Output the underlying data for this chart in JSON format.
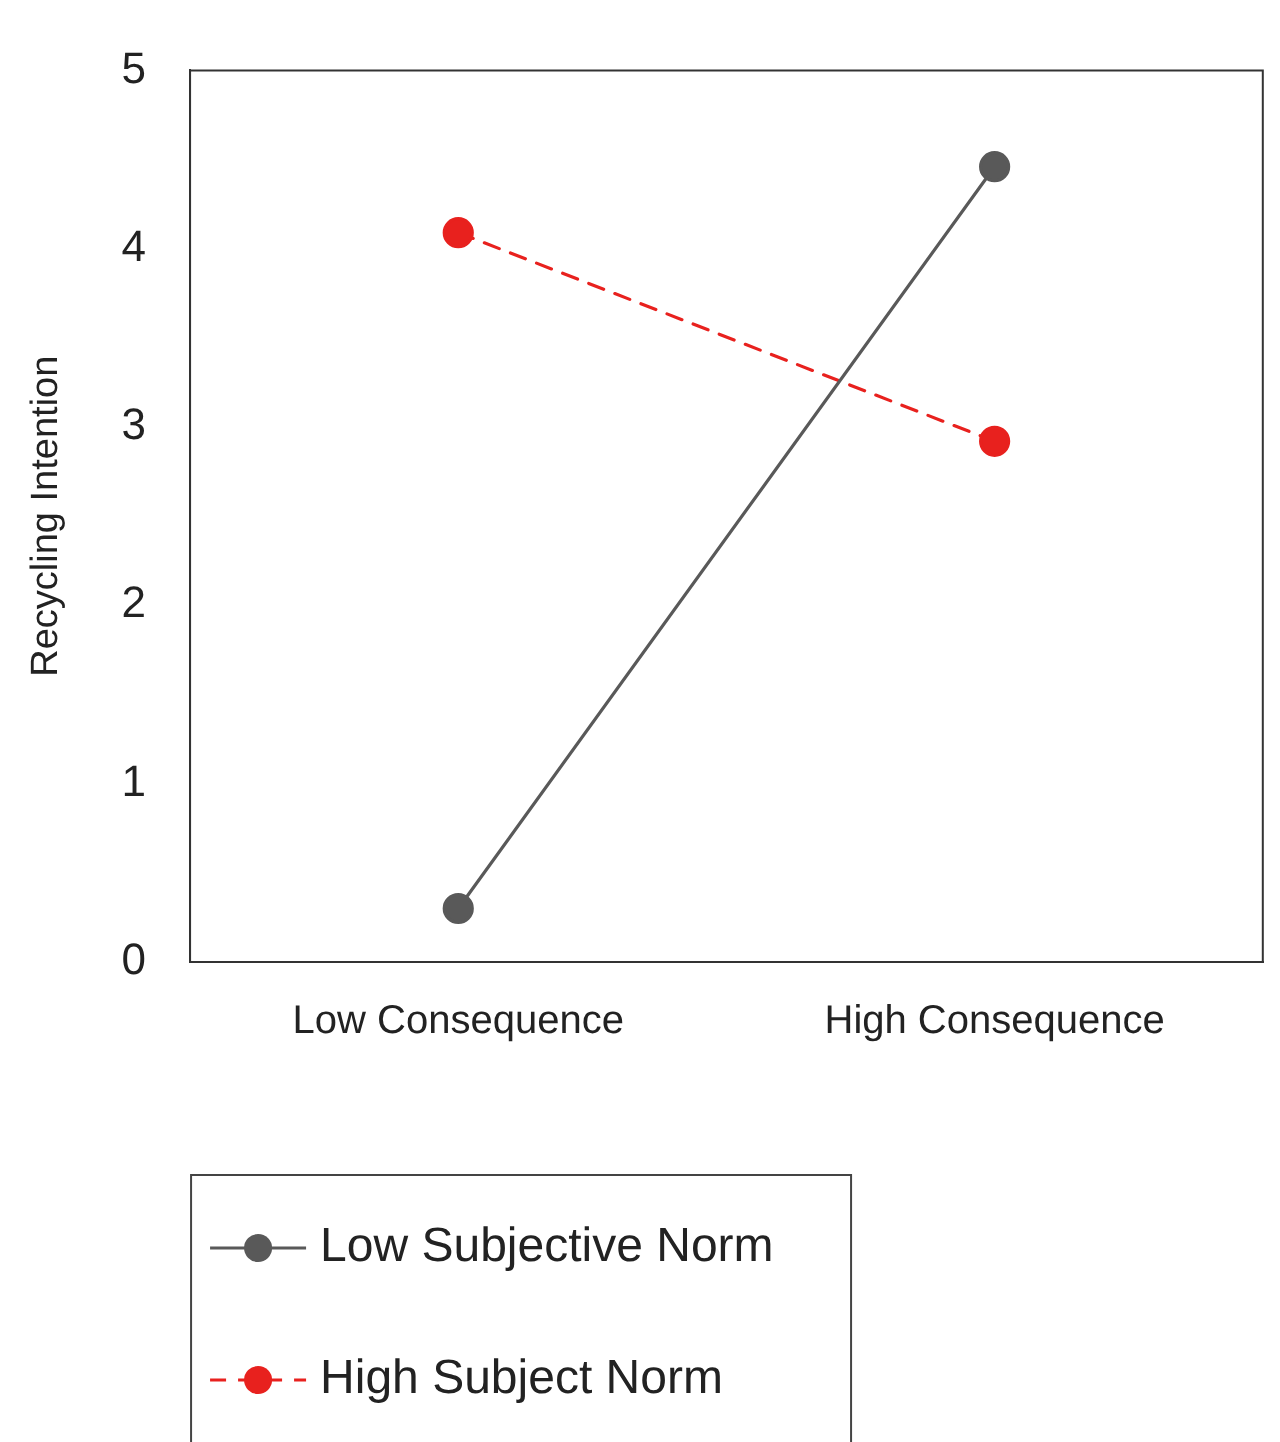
{
  "chart_data": {
    "type": "line",
    "ylabel": "Recycling Intention",
    "categories": [
      "Low Consequence",
      "High Consequence"
    ],
    "ylim": [
      0,
      5
    ],
    "yticks": [
      0,
      1,
      2,
      3,
      4,
      5
    ],
    "grid": false,
    "legend": "bottom left",
    "marker": "circle",
    "series": [
      {
        "name": "Low Subjective Norm",
        "color": "#595959",
        "values": [
          0.3,
          4.46
        ],
        "line_style": "solid"
      },
      {
        "name": "High Subject Norm",
        "color": "#e8211e",
        "values": [
          4.09,
          2.92
        ],
        "line_style": "dashed"
      }
    ]
  }
}
